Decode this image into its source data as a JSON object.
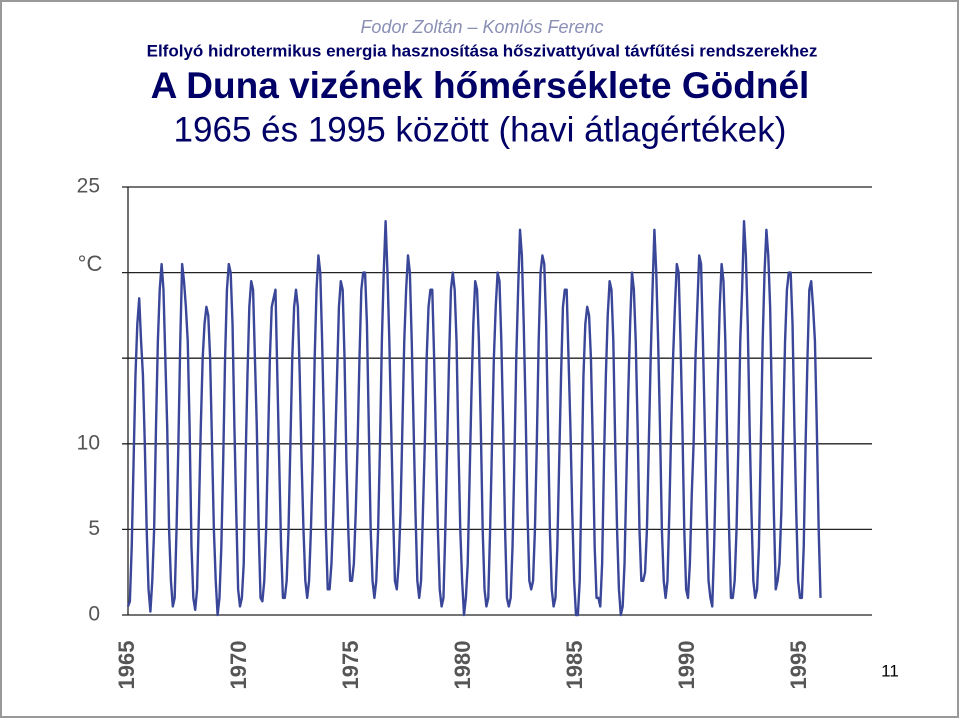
{
  "header": {
    "authors": "Fodor Zoltán – Komlós Ferenc",
    "subtitle": "Elfolyó hidrotermikus energia hasznosítása hőszivattyúval távfűtési rendszerekhez"
  },
  "page_number": "11",
  "chart_data": {
    "type": "line",
    "title": "A Duna vizének hőmérséklete Gödnél",
    "subtitle": "1965 és 1995 között (havi átlagértékek)",
    "ylabel": "°C",
    "color": "#3a4799",
    "categories": [
      "1965",
      null,
      null,
      null,
      null,
      "1970",
      null,
      null,
      null,
      null,
      "1975",
      null,
      null,
      null,
      null,
      "1980",
      null,
      null,
      null,
      null,
      "1985",
      null,
      null,
      null,
      null,
      "1990",
      null,
      null,
      null,
      null,
      "1995"
    ],
    "values": [
      [
        0.5,
        0.8,
        4,
        9,
        14,
        17,
        18.5,
        16,
        14,
        10,
        5,
        1.5
      ],
      [
        0.2,
        2,
        5,
        11,
        16,
        19,
        20.5,
        19,
        15,
        11,
        5,
        2
      ],
      [
        0.5,
        1,
        5,
        10,
        16,
        20.5,
        19.5,
        18,
        16,
        11,
        4,
        1
      ],
      [
        0.3,
        1.5,
        6,
        11,
        15,
        17,
        18,
        17.5,
        15,
        10,
        5,
        2
      ],
      [
        0,
        1,
        4,
        9,
        15,
        19,
        20.5,
        20,
        17,
        11,
        6,
        1.5
      ],
      [
        0.5,
        1,
        3,
        9,
        14,
        18,
        19.5,
        19,
        15,
        11,
        5,
        1
      ],
      [
        0.8,
        2,
        5,
        10,
        15,
        18,
        18.5,
        19,
        14,
        9,
        4,
        1
      ],
      [
        1,
        2,
        5,
        10,
        15,
        18,
        19,
        18,
        14,
        9,
        5,
        2
      ],
      [
        1,
        2,
        5,
        9,
        15,
        19,
        21,
        20,
        16,
        11,
        5,
        1.5
      ],
      [
        1.5,
        3,
        6,
        10,
        14,
        18,
        19.5,
        19,
        15,
        9,
        5,
        2
      ],
      [
        2,
        3,
        6,
        10,
        15,
        19,
        20,
        20,
        17,
        11,
        5,
        2
      ],
      [
        1,
        2,
        5,
        10,
        16,
        20,
        23,
        20,
        16,
        11,
        6,
        2
      ],
      [
        1.5,
        3,
        6,
        11,
        16,
        19,
        21,
        20,
        16,
        11,
        6,
        2
      ],
      [
        1,
        2,
        6,
        10,
        15,
        18,
        19,
        19,
        15,
        10,
        5,
        1.5
      ],
      [
        0.5,
        1,
        5,
        10,
        15,
        19,
        20,
        19,
        16,
        10,
        5,
        2
      ],
      [
        0,
        1,
        3,
        8,
        13,
        17,
        19.5,
        19,
        16,
        11,
        5,
        1.5
      ],
      [
        0.5,
        1,
        5,
        10,
        15,
        18,
        20,
        19.5,
        16,
        11,
        5,
        1
      ],
      [
        0.5,
        1,
        4,
        9,
        15,
        19,
        22.5,
        21,
        17,
        12,
        6,
        2
      ],
      [
        1.5,
        2,
        5,
        10,
        16,
        20,
        21,
        20.5,
        17,
        11,
        5,
        1.5
      ],
      [
        0.5,
        1,
        4,
        9,
        14,
        18,
        19,
        19,
        15,
        11,
        6,
        2
      ],
      [
        0,
        0,
        2,
        8,
        14,
        17,
        18,
        17.5,
        15,
        10,
        4,
        1
      ],
      [
        1,
        0.5,
        3,
        9,
        14,
        17.5,
        19.5,
        19,
        16,
        10,
        5,
        1.5
      ],
      [
        0,
        0.5,
        3,
        8,
        13,
        17,
        20,
        19,
        16,
        11,
        5,
        2
      ],
      [
        2,
        2.5,
        5,
        10,
        15,
        19,
        22.5,
        20,
        16,
        11,
        5,
        2
      ],
      [
        1,
        2,
        6,
        11,
        15,
        18,
        20.5,
        20,
        16,
        11,
        5,
        1.5
      ],
      [
        1,
        3,
        7,
        10,
        15,
        18,
        21,
        20.5,
        16,
        11,
        6,
        2
      ],
      [
        1,
        0.5,
        4,
        9,
        14,
        18,
        20.5,
        19.5,
        16,
        10,
        5,
        1
      ],
      [
        1,
        2,
        5,
        10,
        16,
        19,
        23,
        21,
        17,
        11,
        6,
        2
      ],
      [
        1,
        1.5,
        4,
        10,
        16,
        20,
        22.5,
        21,
        18,
        12,
        6,
        1.5
      ],
      [
        2,
        3,
        6,
        11,
        16,
        19,
        20,
        20,
        17,
        11,
        6,
        2
      ],
      [
        1,
        1,
        4,
        10,
        15,
        19,
        19.5,
        18,
        16,
        11,
        5,
        1
      ]
    ],
    "ylim": [
      0,
      25
    ],
    "yticks": [
      0,
      5,
      10,
      25
    ],
    "unlabeled_gridlines": [
      15,
      20
    ],
    "grid": true
  }
}
